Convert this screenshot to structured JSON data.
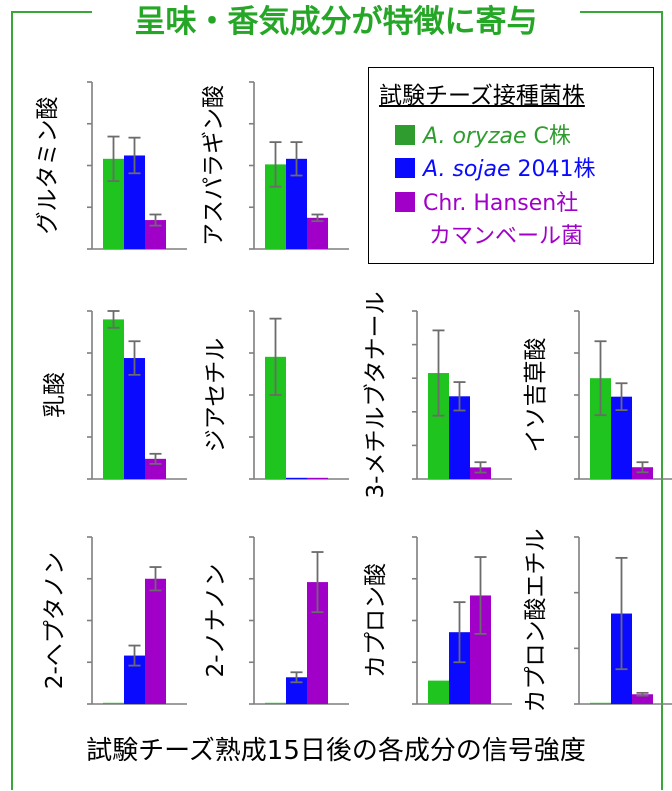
{
  "title": "呈味・香気成分が特徴に寄与",
  "footer": "試験チーズ熟成15日後の各成分の信号強度",
  "legend": {
    "heading": "試験チーズ接種菌株",
    "entries": [
      {
        "italic": "A. oryzae",
        "rest": " C株",
        "color": "#2e9c2e"
      },
      {
        "italic": "A. sojae",
        "rest": " 2041株",
        "color": "#0a0aff"
      },
      {
        "italic": "",
        "rest": "Chr. Hansen社",
        "color": "#a000c8"
      }
    ],
    "continuation": "カマンベール菌"
  },
  "colors": {
    "green": "#1fc41f",
    "blue": "#0a0aff",
    "purple": "#a000c8",
    "frame": "#3aa63a",
    "title": "#26a626"
  },
  "chart_data": [
    {
      "type": "bar",
      "title": "グルタミン酸",
      "series": [
        {
          "values": [
            0.81,
            0.84,
            0.26
          ],
          "err": [
            0.2,
            0.16,
            0.05
          ]
        }
      ],
      "ylim": [
        0,
        1.5
      ]
    },
    {
      "type": "bar",
      "title": "アスパラギン酸",
      "series": [
        {
          "values": [
            0.76,
            0.81,
            0.28
          ],
          "err": [
            0.2,
            0.15,
            0.03
          ]
        }
      ],
      "ylim": [
        0,
        1.5
      ]
    },
    {
      "type": "bar",
      "title": "乳酸",
      "series": [
        {
          "values": [
            0.95,
            0.72,
            0.12
          ],
          "err": [
            0.05,
            0.1,
            0.03
          ]
        }
      ],
      "ylim": [
        0,
        1.0
      ]
    },
    {
      "type": "bar",
      "title": "ジアセチル",
      "series": [
        {
          "values": [
            0.8,
            0.0,
            0.0
          ],
          "err": [
            0.25,
            0,
            0
          ]
        }
      ],
      "ylim": [
        0,
        1.1
      ]
    },
    {
      "type": "bar",
      "title": "3-メチルブタナール",
      "series": [
        {
          "values": [
            0.82,
            0.64,
            0.09
          ],
          "err": [
            0.33,
            0.11,
            0.04
          ]
        }
      ],
      "ylim": [
        0,
        1.3
      ]
    },
    {
      "type": "bar",
      "title": "イソ吉草酸",
      "series": [
        {
          "values": [
            0.6,
            0.49,
            0.07
          ],
          "err": [
            0.22,
            0.08,
            0.03
          ]
        }
      ],
      "ylim": [
        0,
        1.0
      ]
    },
    {
      "type": "bar",
      "title": "2-ヘプタノン",
      "series": [
        {
          "values": [
            0.0,
            0.29,
            0.75
          ],
          "err": [
            0,
            0.06,
            0.07
          ]
        }
      ],
      "ylim": [
        0,
        1.0
      ]
    },
    {
      "type": "bar",
      "title": "2-ノナノン",
      "series": [
        {
          "values": [
            0.0,
            0.16,
            0.73
          ],
          "err": [
            0,
            0.03,
            0.18
          ]
        }
      ],
      "ylim": [
        0,
        1.0
      ]
    },
    {
      "type": "bar",
      "title": "カプロン酸",
      "series": [
        {
          "values": [
            0.14,
            0.43,
            0.65
          ],
          "err": [
            0,
            0.18,
            0.23
          ]
        }
      ],
      "ylim": [
        0,
        1.0
      ]
    },
    {
      "type": "bar",
      "title": "カプロン酸エチル",
      "series": [
        {
          "values": [
            0.0,
            0.65,
            0.07
          ],
          "err": [
            0,
            0.4,
            0.01
          ]
        }
      ],
      "ylim": [
        0,
        1.2
      ]
    }
  ]
}
